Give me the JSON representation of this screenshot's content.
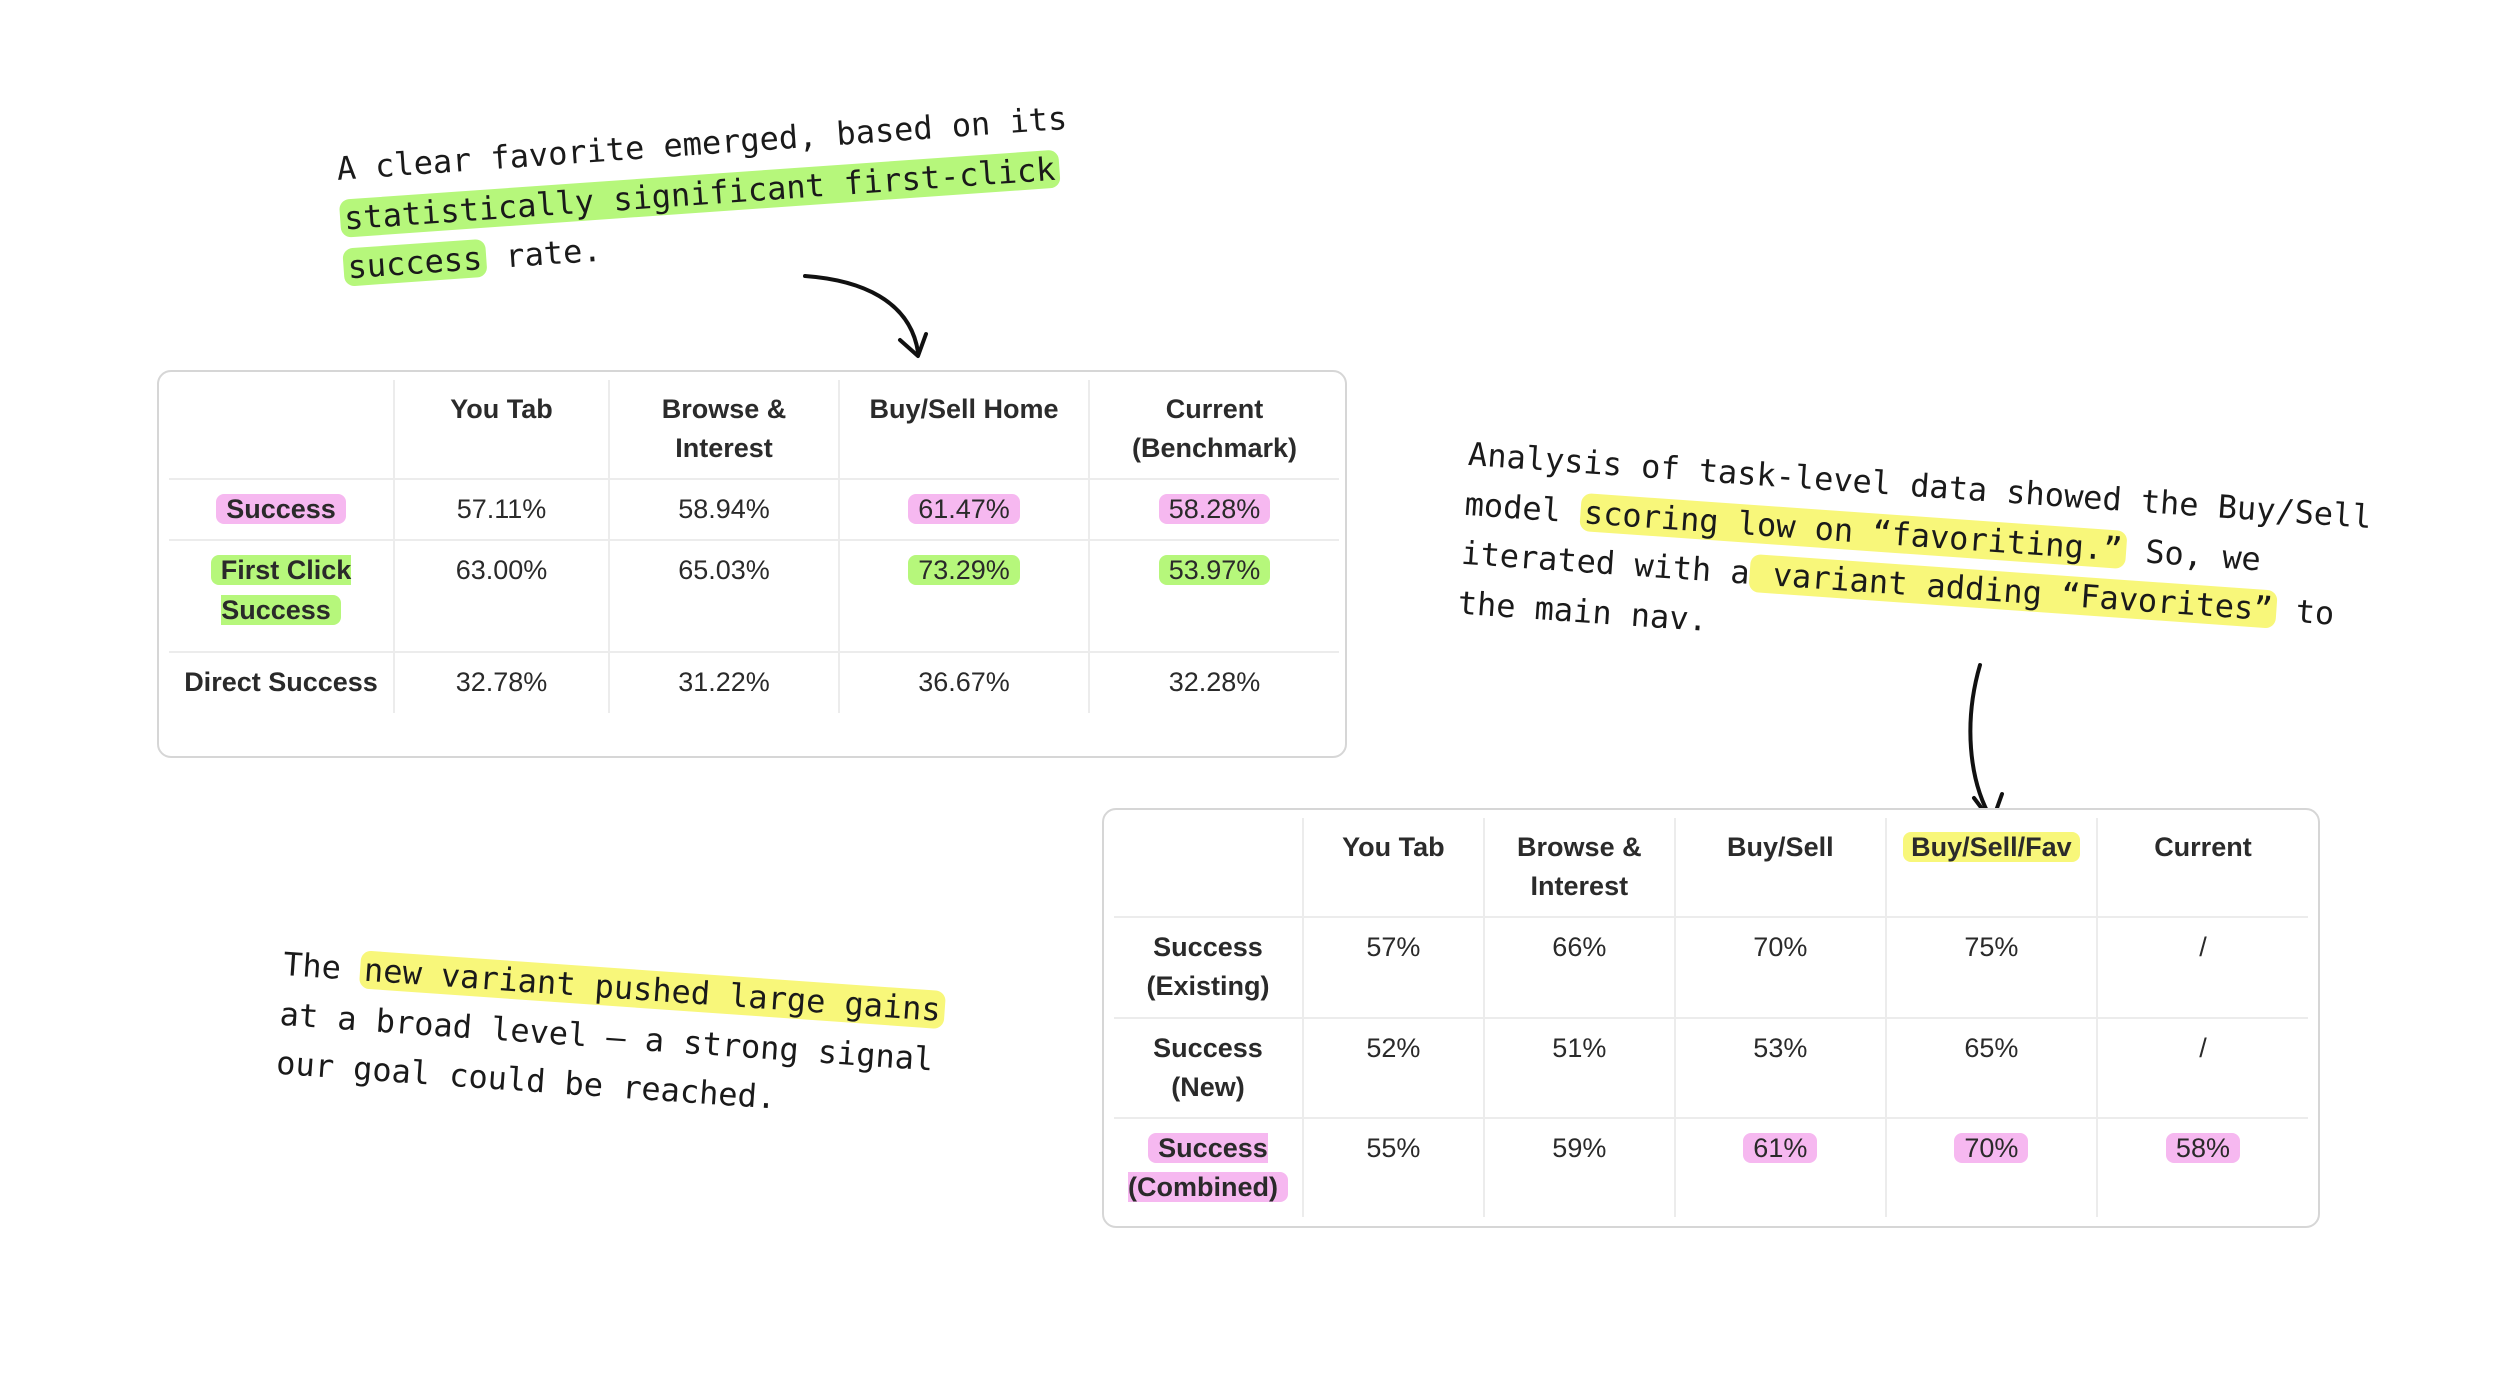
{
  "note_top": {
    "line1": "A clear favorite emerged, based on its",
    "line2_hl": "statistically significant first-click",
    "line3_hl": "success",
    "line3_rest": " rate."
  },
  "note_right": {
    "line1": "Analysis of task-level data showed the Buy/Sell",
    "line2_pre": "model ",
    "line2_hl": "scoring low on “favoriting.”",
    "line2_post": " So, we",
    "line3_pre": "iterated with a",
    "line3_hl": " variant adding “Favorites”",
    "line3_post": " to",
    "line4": "the main nav."
  },
  "note_bottom": {
    "line1_pre": "The ",
    "line1_hl": "new variant pushed large gains",
    "line2": "at a broad level — a strong signal",
    "line3": "our goal could be reached."
  },
  "table1": {
    "headers": [
      "",
      "You Tab",
      "Browse & Interest",
      "Buy/Sell Home",
      "Current (Benchmark)"
    ],
    "rows": [
      {
        "label": "Success",
        "cells": [
          "57.11%",
          "58.94%",
          "61.47%",
          "58.28%"
        ]
      },
      {
        "label": "First Click Success",
        "cells": [
          "63.00%",
          "65.03%",
          "73.29%",
          "53.97%"
        ]
      },
      {
        "label": "Direct Success",
        "cells": [
          "32.78%",
          "31.22%",
          "36.67%",
          "32.28%"
        ]
      }
    ]
  },
  "table2": {
    "headers": [
      "",
      "You Tab",
      "Browse & Interest",
      "Buy/Sell",
      "Buy/Sell/Fav",
      "Current"
    ],
    "rows": [
      {
        "label": "Success (Existing)",
        "cells": [
          "57%",
          "66%",
          "70%",
          "75%",
          "/"
        ]
      },
      {
        "label": "Success (New)",
        "cells": [
          "52%",
          "51%",
          "53%",
          "65%",
          "/"
        ]
      },
      {
        "label": "Success (Combined)",
        "cells": [
          "55%",
          "59%",
          "61%",
          "70%",
          "58%"
        ]
      }
    ]
  },
  "colors": {
    "highlight_green": "#b6f77b",
    "highlight_yellow": "#f8f77a",
    "highlight_pink": "#f6b8f0",
    "table_border": "#d6d6d6"
  }
}
